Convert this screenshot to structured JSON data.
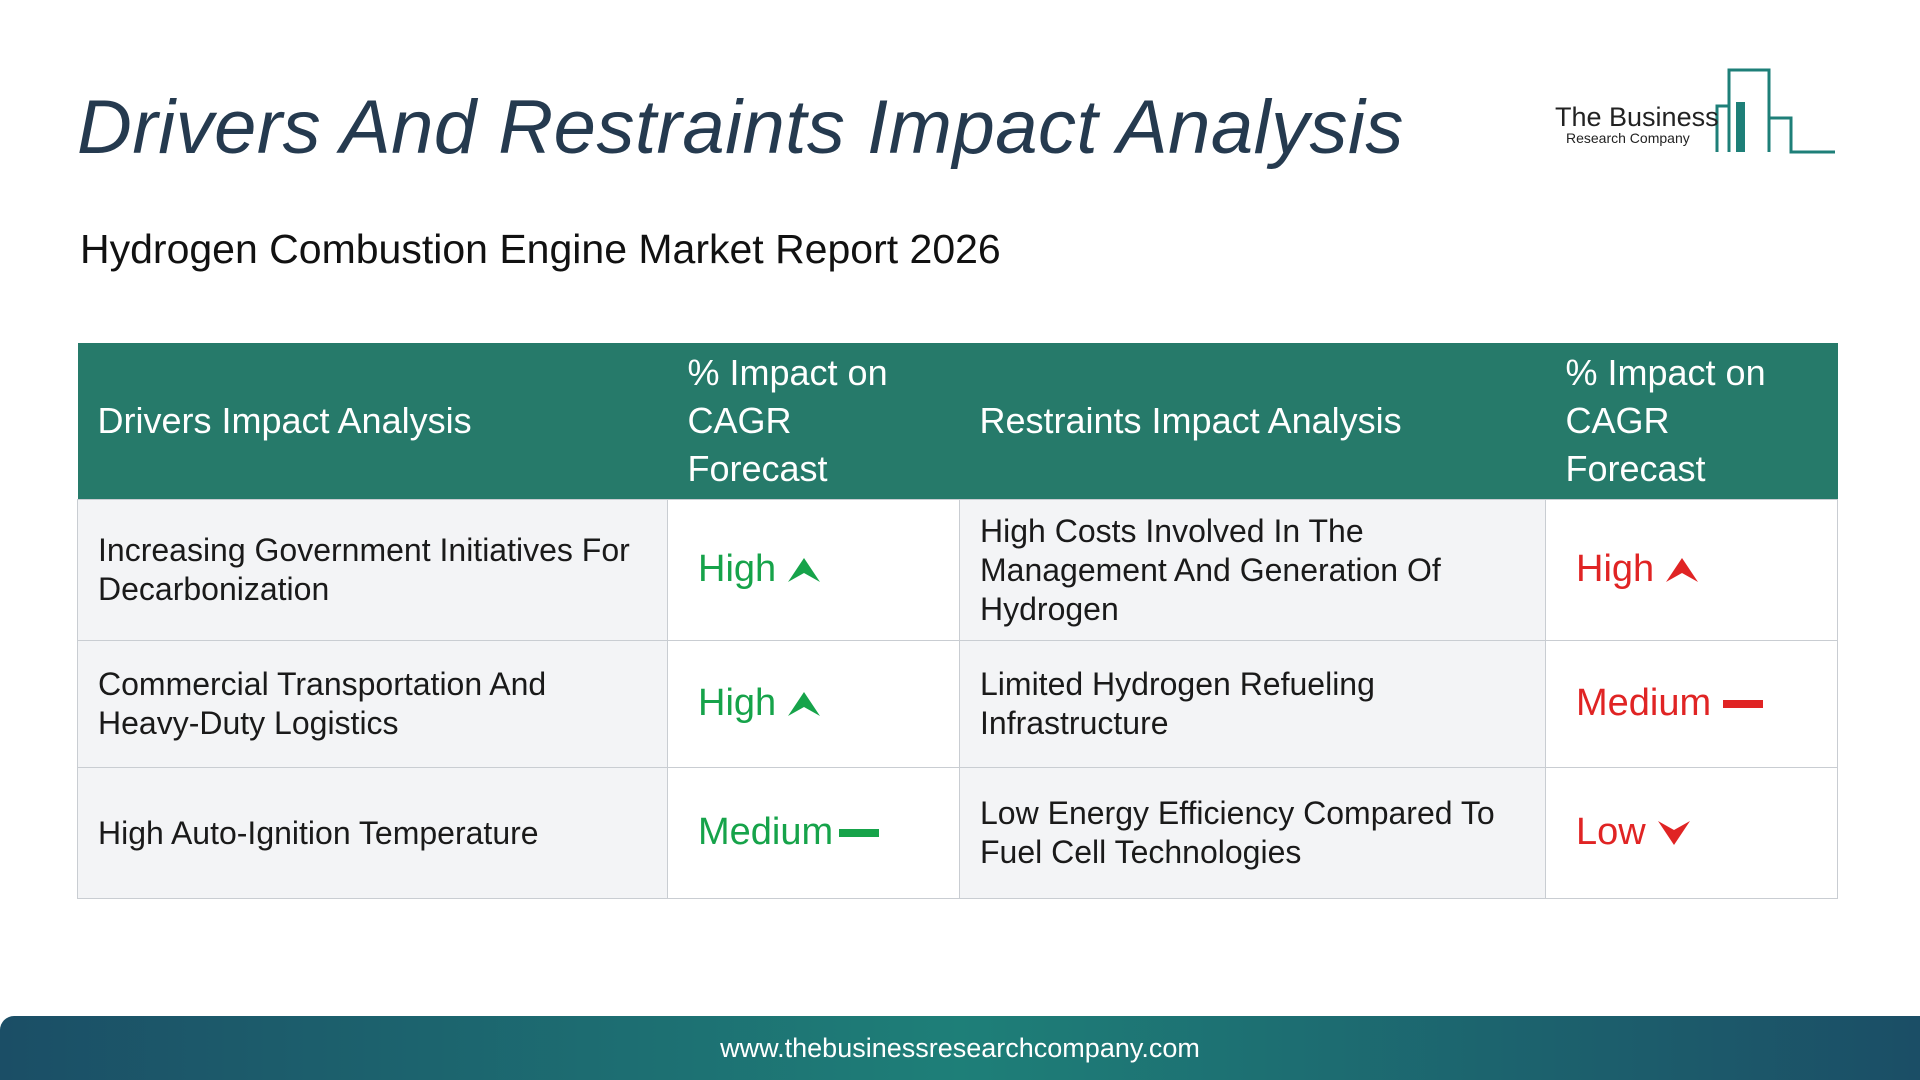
{
  "header": {
    "title": "Drivers And Restraints Impact Analysis",
    "subtitle": "Hydrogen Combustion Engine Market Report 2026"
  },
  "logo": {
    "line1": "The Business",
    "line2": "Research Company",
    "color": "#1e7f78"
  },
  "table": {
    "headers": {
      "drivers": "Drivers Impact Analysis",
      "drivers_impact_line1": "% Impact on",
      "drivers_impact_line2": "CAGR Forecast",
      "restraints": "Restraints Impact Analysis",
      "restraints_impact_line1": "% Impact on",
      "restraints_impact_line2": "CAGR Forecast"
    },
    "rows": [
      {
        "driver": "Increasing Government Initiatives For Decarbonization",
        "driver_impact": "High",
        "driver_icon": "arrow-up-icon",
        "restraint": "High Costs Involved In The Management And Generation Of Hydrogen",
        "restraint_impact": "High",
        "restraint_icon": "arrow-up-icon"
      },
      {
        "driver": "Commercial Transportation And Heavy-Duty Logistics",
        "driver_impact": "High",
        "driver_icon": "arrow-up-icon",
        "restraint": "Limited Hydrogen Refueling Infrastructure",
        "restraint_impact": "Medium",
        "restraint_icon": "dash-icon"
      },
      {
        "driver": "High Auto-Ignition Temperature",
        "driver_impact": "Medium",
        "driver_icon": "dash-icon",
        "restraint": "Low Energy Efficiency Compared To Fuel Cell Technologies",
        "restraint_impact": "Low",
        "restraint_icon": "arrow-down-icon"
      }
    ]
  },
  "colors": {
    "header_bg": "#267a6a",
    "driver_impact": "#16a34a",
    "restraint_impact": "#e02424",
    "title": "#253a4f"
  },
  "footer": {
    "url": "www.thebusinessresearchcompany.com"
  }
}
